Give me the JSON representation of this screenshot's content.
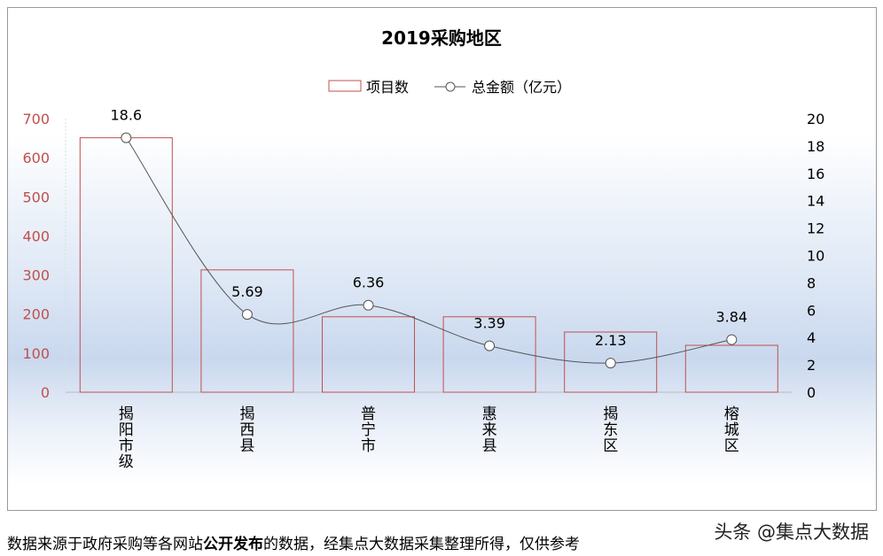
{
  "chart_data": {
    "type": "bar+line",
    "title": "2019采购地区",
    "categories": [
      "揭阳市级",
      "揭西县",
      "普宁市",
      "惠来县",
      "揭东区",
      "榕城区"
    ],
    "series": [
      {
        "name": "项目数",
        "type": "bar",
        "axis": "left",
        "values": [
          651,
          313,
          193,
          193,
          154,
          120
        ],
        "color": "#c0504d"
      },
      {
        "name": "总金额（亿元）",
        "type": "line",
        "axis": "right",
        "values": [
          18.6,
          5.69,
          6.36,
          3.39,
          2.13,
          3.84
        ],
        "labels": [
          "18.6",
          "5.69",
          "6.36",
          "3.39",
          "2.13",
          "3.84"
        ],
        "color": "#555555"
      }
    ],
    "left_axis": {
      "range": [
        0,
        700
      ],
      "ticks": [
        "0",
        "100",
        "200",
        "300",
        "400",
        "500",
        "600",
        "700"
      ],
      "color": "#c0504d"
    },
    "right_axis": {
      "range": [
        0,
        20
      ],
      "ticks": [
        "0",
        "2",
        "4",
        "6",
        "8",
        "10",
        "12",
        "14",
        "16",
        "18",
        "20"
      ]
    },
    "legend": "top-center"
  },
  "footer": {
    "pre": "数据来源于政府采购等各网站",
    "bold": "公开发布",
    "post": "的数据，经集点大数据采集整理所得，仅供参考"
  },
  "watermark": "头条 @集点大数据"
}
